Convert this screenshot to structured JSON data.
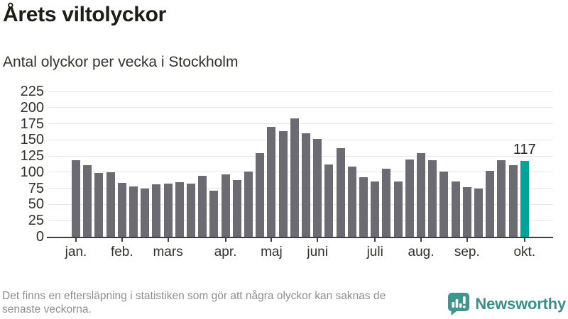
{
  "header": {
    "title": "Årets viltolyckor",
    "subtitle": "Antal olyckor per vecka i Stockholm"
  },
  "chart_data": {
    "type": "bar",
    "title": "Årets viltolyckor",
    "subtitle": "Antal olyckor per vecka i Stockholm",
    "ylabel": "Antal olyckor per vecka",
    "xlabel": "",
    "ylim": [
      0,
      225
    ],
    "ytick_step": 25,
    "grid": "horizontal",
    "values": [
      119,
      111,
      99,
      100,
      83,
      78,
      75,
      81,
      82,
      85,
      82,
      94,
      71,
      97,
      88,
      101,
      129,
      170,
      164,
      183,
      160,
      151,
      112,
      137,
      109,
      92,
      86,
      105,
      86,
      120,
      130,
      118,
      101,
      86,
      77,
      75,
      102,
      118,
      111,
      117
    ],
    "highlight_index": 39,
    "annotation": {
      "index": 39,
      "label": "117"
    },
    "months": [
      {
        "label": "jan.",
        "week_index": 0
      },
      {
        "label": "feb.",
        "week_index": 4
      },
      {
        "label": "mars",
        "week_index": 8
      },
      {
        "label": "apr.",
        "week_index": 13
      },
      {
        "label": "maj",
        "week_index": 17
      },
      {
        "label": "juni",
        "week_index": 21
      },
      {
        "label": "juli",
        "week_index": 26
      },
      {
        "label": "aug.",
        "week_index": 30
      },
      {
        "label": "sep.",
        "week_index": 34
      },
      {
        "label": "okt.",
        "week_index": 39
      }
    ],
    "colors": {
      "bar": "#6c6b74",
      "highlight": "#00a39a",
      "gridline": "#e6e6e6",
      "axis": "#3e3e3e"
    }
  },
  "footer": {
    "lines": [
      "Det finns en eftersläpning i statistiken som gör att några olyckor kan saknas de",
      "senaste veckorna."
    ],
    "brand": "Newsworthy"
  }
}
